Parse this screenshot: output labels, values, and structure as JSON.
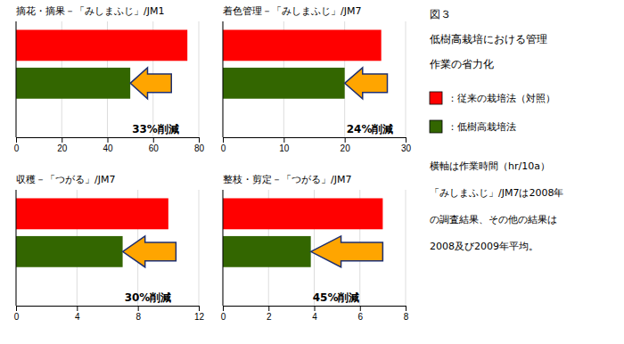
{
  "title": [
    "図３",
    "低樹高栽培における管理",
    "作業の省力化"
  ],
  "notes": [
    "横軸は作業時間（hr/10a）",
    "「みしまふじ」/JM7は2008年",
    "の調査結果、その他の結果は",
    "2008及び2009年平均。"
  ],
  "chart_data": [
    {
      "type": "bar",
      "orientation": "horizontal",
      "title": "摘花・摘果－「みしまふじ」/JM1",
      "categories": [
        null
      ],
      "series": [
        {
          "name": "：従来の栽培法（対照）",
          "color": "#FF0000",
          "values": [
            75
          ]
        },
        {
          "name": "：低樹高栽培法",
          "color": "#336600",
          "values": [
            50
          ]
        }
      ],
      "xlim": [
        0,
        80
      ],
      "xticks": [
        0,
        20,
        40,
        60,
        80
      ],
      "grid": true,
      "tick_labels": "x",
      "annotations": [
        {
          "text": "33%削減",
          "x": 50,
          "x_from": 68,
          "color": "#FFA500"
        }
      ]
    },
    {
      "type": "bar",
      "orientation": "horizontal",
      "title": "着色管理－「みしまふじ」/JM7",
      "categories": [
        null
      ],
      "series": [
        {
          "color": "#FF0000",
          "values": [
            26
          ]
        },
        {
          "color": "#336600",
          "values": [
            20
          ]
        }
      ],
      "xlim": [
        0,
        30
      ],
      "xticks": [
        0,
        10,
        20,
        30
      ],
      "grid": true,
      "tick_labels": "x",
      "annotations": [
        {
          "text": "24%削減",
          "x": 20,
          "x_from": 27,
          "color": "#FFA500"
        }
      ]
    },
    {
      "type": "bar",
      "orientation": "horizontal",
      "title": "収穫－「つがる」/JM7",
      "categories": [
        null
      ],
      "series": [
        {
          "color": "#FF0000",
          "values": [
            10
          ]
        },
        {
          "color": "#336600",
          "values": [
            7
          ]
        }
      ],
      "xlim": [
        0,
        12
      ],
      "xticks": [
        0,
        4,
        8,
        12
      ],
      "grid": true,
      "tick_labels": "x",
      "annotations": [
        {
          "text": "30%削減",
          "x": 7,
          "x_from": 10.5,
          "color": "#FFA500"
        }
      ]
    },
    {
      "type": "bar",
      "orientation": "horizontal",
      "title": "整枝・剪定－「つがる」/JM7",
      "categories": [
        null
      ],
      "series": [
        {
          "color": "#FF0000",
          "values": [
            7
          ]
        },
        {
          "color": "#336600",
          "values": [
            3.85
          ]
        }
      ],
      "xlim": [
        0,
        8
      ],
      "xticks": [
        0,
        2,
        4,
        6,
        8
      ],
      "grid": true,
      "tick_labels": "x",
      "annotations": [
        {
          "text": "45%削減",
          "x": 3.85,
          "x_from": 7.0,
          "color": "#FFA500"
        }
      ]
    }
  ]
}
